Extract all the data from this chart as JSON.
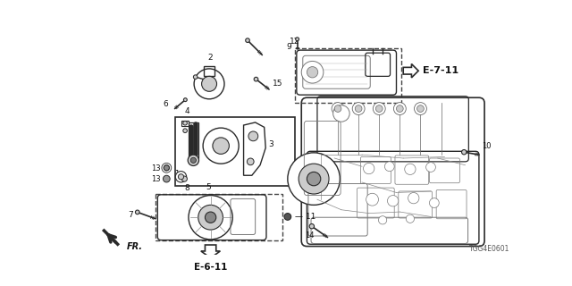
{
  "background_color": "#ffffff",
  "diagram_code": "TGG4E0601",
  "ref_e6_11": "E-6-11",
  "ref_e7_11": "E-7-11",
  "fr_label": "FR.",
  "colors": {
    "line": "#2a2a2a",
    "dashed": "#444444",
    "text": "#111111",
    "gray_fill": "#888888",
    "light_gray": "#cccccc",
    "dark_gray": "#555555"
  },
  "figsize": [
    6.4,
    3.2
  ],
  "dpi": 100
}
